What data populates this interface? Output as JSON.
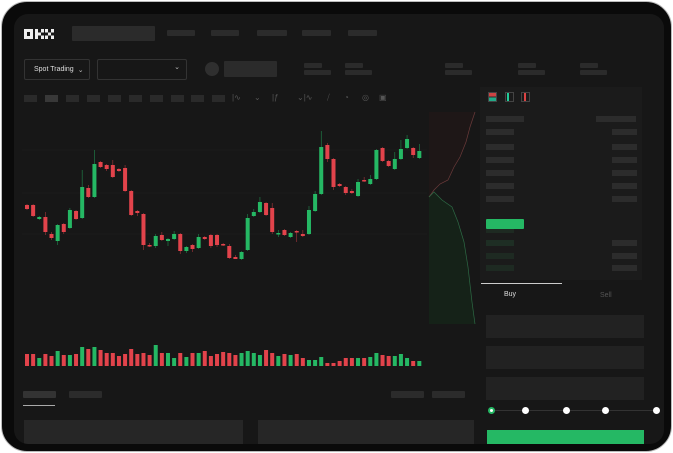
{
  "header": {
    "logo": "OKX"
  },
  "toolbar": {
    "market_select": "Spot Trading"
  },
  "trade": {
    "tabs": [
      "Buy",
      "Sell"
    ],
    "active_tab": "Buy",
    "leverage_slider_level": 0
  },
  "colors": {
    "up": "#25b864",
    "down": "#e2434b",
    "background": "#171717",
    "accent": "#25b864"
  },
  "chart_data": {
    "type": "candlestick",
    "candles": [
      [
        97,
        98,
        92,
        93
      ],
      [
        97,
        98,
        85,
        86
      ],
      [
        83,
        86,
        82,
        85
      ],
      [
        85,
        90,
        67,
        70
      ],
      [
        68,
        70,
        62,
        64
      ],
      [
        61,
        78,
        57,
        77
      ],
      [
        78,
        79,
        68,
        70
      ],
      [
        74,
        94,
        73,
        92
      ],
      [
        91,
        92,
        82,
        83
      ],
      [
        84,
        132,
        83,
        115
      ],
      [
        114,
        117,
        104,
        105
      ],
      [
        105,
        152,
        104,
        138
      ],
      [
        140,
        141,
        134,
        135
      ],
      [
        137,
        138,
        131,
        133
      ],
      [
        137,
        142,
        124,
        125
      ],
      [
        133,
        134,
        130,
        131
      ],
      [
        134,
        137,
        110,
        111
      ],
      [
        111,
        112,
        86,
        87
      ],
      [
        91,
        92,
        86,
        89
      ],
      [
        88,
        89,
        52,
        57
      ],
      [
        57,
        59,
        55,
        56
      ],
      [
        56,
        68,
        54,
        66
      ],
      [
        67,
        70,
        61,
        62
      ],
      [
        61,
        64,
        56,
        63
      ],
      [
        63,
        71,
        62,
        68
      ],
      [
        68,
        69,
        48,
        51
      ],
      [
        51,
        56,
        49,
        55
      ],
      [
        57,
        58,
        50,
        53
      ],
      [
        54,
        68,
        53,
        65
      ],
      [
        65,
        66,
        62,
        63
      ],
      [
        67,
        68,
        54,
        56
      ],
      [
        67,
        68,
        55,
        57
      ],
      [
        58,
        59,
        56,
        57
      ],
      [
        56,
        58,
        43,
        44
      ],
      [
        45,
        47,
        43,
        43
      ],
      [
        43,
        51,
        42,
        50
      ],
      [
        52,
        88,
        51,
        84
      ],
      [
        86,
        93,
        85,
        90
      ],
      [
        90,
        105,
        89,
        100
      ],
      [
        99,
        100,
        86,
        87
      ],
      [
        94,
        99,
        68,
        70
      ],
      [
        68,
        72,
        65,
        69
      ],
      [
        72,
        73,
        66,
        67
      ],
      [
        65,
        70,
        64,
        69
      ],
      [
        71,
        72,
        60,
        70
      ],
      [
        68,
        72,
        65,
        66
      ],
      [
        68,
        96,
        67,
        92
      ],
      [
        91,
        111,
        90,
        108
      ],
      [
        108,
        171,
        107,
        155
      ],
      [
        157,
        159,
        140,
        143
      ],
      [
        143,
        144,
        112,
        115
      ],
      [
        118,
        119,
        115,
        116
      ],
      [
        115,
        116,
        107,
        109
      ],
      [
        111,
        113,
        108,
        109
      ],
      [
        106,
        123,
        105,
        120
      ],
      [
        122,
        125,
        120,
        121
      ],
      [
        118,
        127,
        117,
        123
      ],
      [
        123,
        153,
        122,
        152
      ],
      [
        154,
        155,
        140,
        141
      ],
      [
        141,
        142,
        135,
        136
      ],
      [
        133,
        150,
        132,
        143
      ],
      [
        143,
        162,
        142,
        153
      ],
      [
        154,
        167,
        153,
        163
      ],
      [
        154,
        155,
        144,
        147
      ],
      [
        144,
        158,
        143,
        151
      ]
    ],
    "volume": [
      12,
      12,
      8,
      12,
      10,
      15,
      11,
      11,
      12,
      19,
      17,
      19,
      16,
      13,
      13,
      10,
      12,
      17,
      12,
      13,
      11,
      21,
      13,
      13,
      8,
      13,
      9,
      13,
      13,
      15,
      10,
      12,
      14,
      13,
      11,
      13,
      15,
      13,
      11,
      16,
      13,
      10,
      12,
      11,
      12,
      8,
      6,
      6,
      9,
      3,
      3,
      5,
      8,
      8,
      8,
      8,
      9,
      13,
      11,
      10,
      10,
      12,
      8,
      5,
      5
    ]
  }
}
